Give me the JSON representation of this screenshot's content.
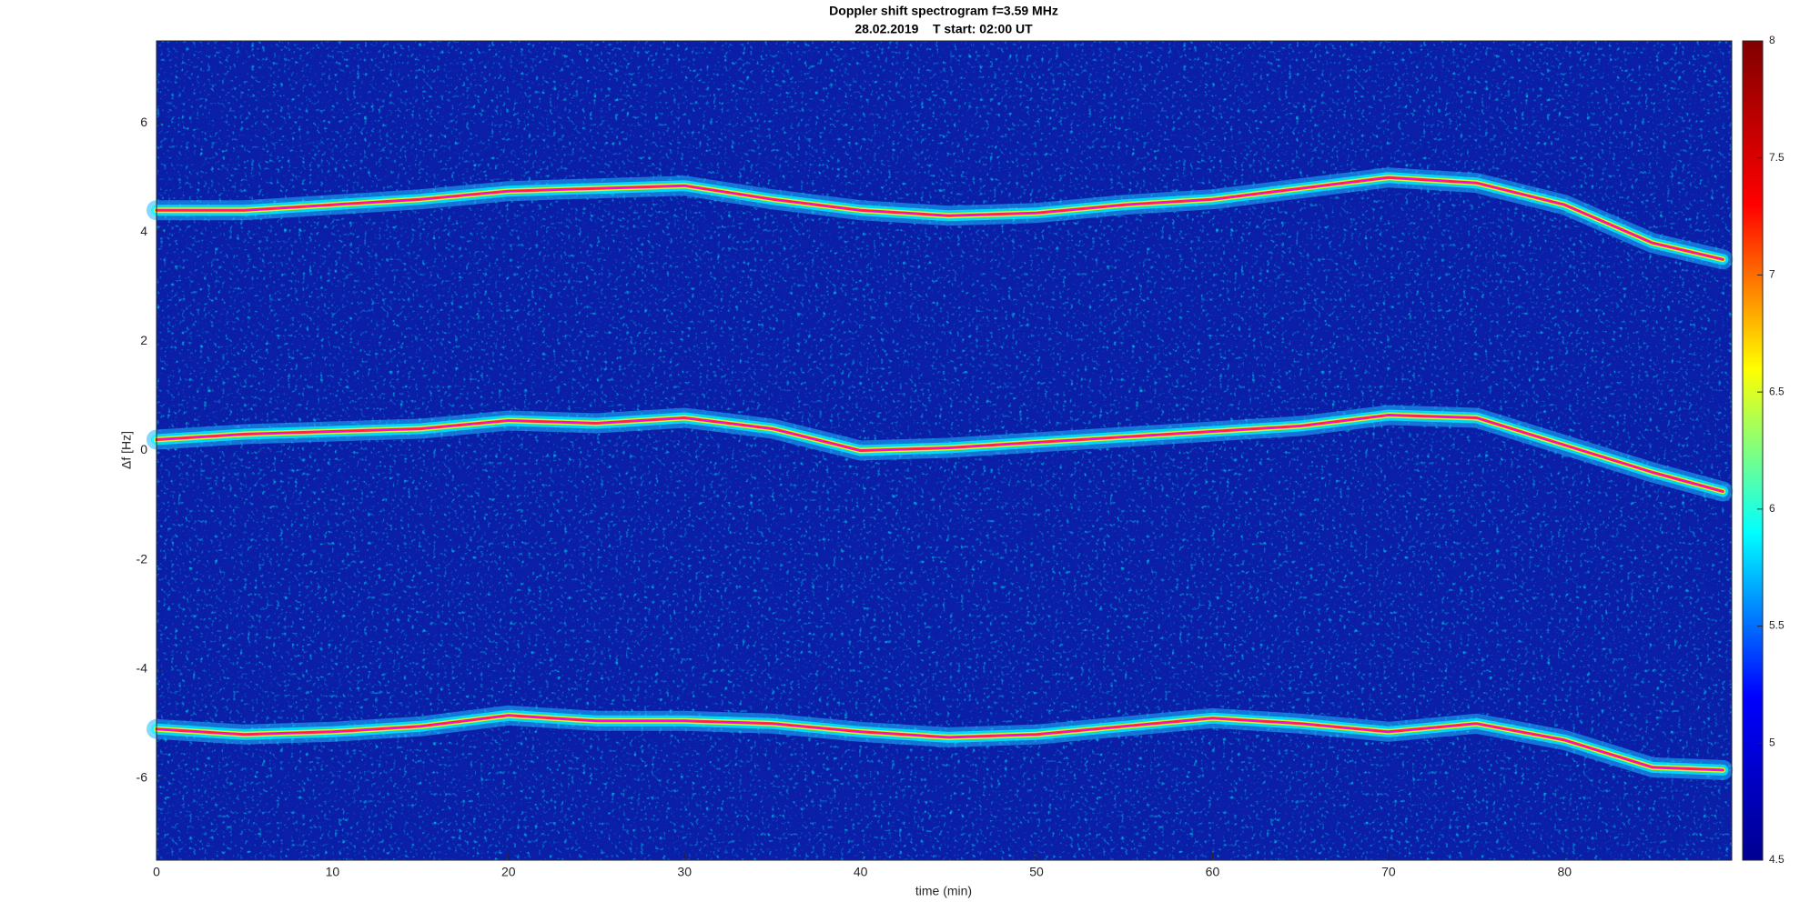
{
  "chart_data": {
    "type": "spectrogram",
    "title": "Doppler shift spectrogram f=3.59 MHz",
    "subtitle": "28.02.2019    T start: 02:00 UT",
    "xlabel": "time (min)",
    "ylabel": "Δf [Hz]",
    "xlim": [
      0,
      89.5
    ],
    "ylim": [
      -7.5,
      7.5
    ],
    "xticks": [
      0,
      10,
      20,
      30,
      40,
      50,
      60,
      70,
      80
    ],
    "yticks": [
      -6,
      -4,
      -2,
      0,
      2,
      4,
      6
    ],
    "x": [
      0,
      5,
      10,
      15,
      20,
      25,
      30,
      35,
      40,
      45,
      50,
      55,
      60,
      65,
      70,
      75,
      80,
      85,
      89
    ],
    "series": [
      {
        "color": "#ff00ff",
        "values": [
          4.4,
          4.4,
          4.5,
          4.6,
          4.75,
          4.8,
          4.85,
          4.6,
          4.4,
          4.3,
          4.35,
          4.5,
          4.6,
          4.8,
          5.0,
          4.9,
          4.5,
          3.8,
          3.5
        ]
      },
      {
        "color": "#ff00ff",
        "values": [
          0.2,
          0.3,
          0.35,
          0.4,
          0.55,
          0.5,
          0.6,
          0.4,
          0.0,
          0.05,
          0.15,
          0.25,
          0.35,
          0.45,
          0.65,
          0.6,
          0.1,
          -0.4,
          -0.75
        ]
      },
      {
        "color": "#ff00ff",
        "values": [
          -5.1,
          -5.2,
          -5.15,
          -5.05,
          -4.85,
          -4.95,
          -4.95,
          -5.0,
          -5.15,
          -5.25,
          -5.2,
          -5.05,
          -4.9,
          -5.0,
          -5.15,
          -5.0,
          -5.3,
          -5.8,
          -5.85
        ]
      }
    ],
    "colorbar": {
      "lim": [
        4.5,
        8
      ],
      "ticks": [
        4.5,
        5,
        5.5,
        6,
        6.5,
        7,
        7.5,
        8
      ],
      "colormap": [
        "#00008f",
        "#0000ff",
        "#00ffff",
        "#ffff00",
        "#ff0000",
        "#800000"
      ]
    }
  }
}
